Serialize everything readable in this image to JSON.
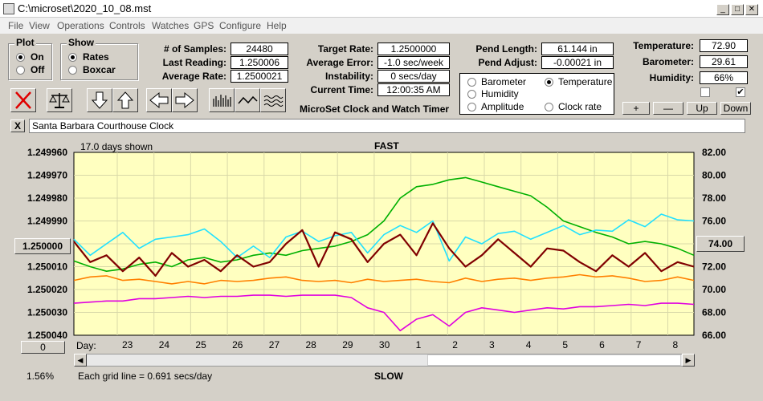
{
  "window": {
    "title": "C:\\microset\\2020_10_08.mst"
  },
  "menu": [
    "File",
    "View",
    "Operations",
    "Controls",
    "Watches",
    "GPS",
    "Configure",
    "Help"
  ],
  "plot_group": {
    "title": "Plot",
    "on": "On",
    "off": "Off",
    "selected": "On"
  },
  "show_group": {
    "title": "Show",
    "rates": "Rates",
    "boxcar": "Boxcar",
    "selected": "Rates"
  },
  "stats": {
    "samples_label": "# of Samples:",
    "samples": "24480",
    "last_label": "Last Reading:",
    "last": "1.250006",
    "avg_label": "Average Rate:",
    "avg": "1.2500021"
  },
  "target": {
    "target_label": "Target Rate:",
    "target": "1.2500000",
    "error_label": "Average Error:",
    "error": "-1.0 sec/week",
    "instab_label": "Instability:",
    "instab": "0 secs/day",
    "time_label": "Current Time:",
    "time": "12:00:35 AM"
  },
  "app_name": "MicroSet Clock and Watch Timer",
  "pend": {
    "length_label": "Pend Length:",
    "length": "61.144 in",
    "adjust_label": "Pend Adjust:",
    "adjust": "-0.00021 in"
  },
  "overlays": {
    "barometer": "Barometer",
    "temperature": "Temperature",
    "humidity": "Humidity",
    "amplitude": "Amplitude",
    "clock_rate": "Clock rate",
    "selected": "Temperature"
  },
  "env": {
    "temp_label": "Temperature:",
    "temp": "72.90",
    "baro_label": "Barometer:",
    "baro": "29.61",
    "hum_label": "Humidity:",
    "hum": "66%"
  },
  "scale_buttons": {
    "plus": "+",
    "minus": "—",
    "up": "Up",
    "down": "Down"
  },
  "clock_name": "Santa Barbara Courthouse Clock",
  "close_x": "X",
  "colors": {
    "plot_bg": "#ffffc0",
    "temperature": "#00b000",
    "barometer": "#ff8000",
    "humidity": "#e000e0",
    "amplitude": "#20e0ff",
    "clock_rate": "#800000"
  },
  "chart_data": {
    "type": "line",
    "days_shown": "17.0 days shown",
    "top_label": "FAST",
    "bottom_label": "SLOW",
    "grid_note": "Each grid line = 0.691 secs/day",
    "left_axis": [
      "1.249960",
      "1.249970",
      "1.249980",
      "1.249990",
      "1.250000",
      "1.250010",
      "1.250020",
      "1.250030",
      "1.250040"
    ],
    "right_axis": [
      "82.00",
      "80.00",
      "78.00",
      "76.00",
      "74.00",
      "72.00",
      "70.00",
      "68.00",
      "66.00"
    ],
    "left_center_button": "1.250000",
    "right_center_button": "74.00",
    "bottom_left_button": "0",
    "percent": "1.56%",
    "x_title": "Day:",
    "x_labels": [
      "23",
      "24",
      "25",
      "26",
      "27",
      "28",
      "29",
      "30",
      "1",
      "2",
      "3",
      "4",
      "5",
      "6",
      "7",
      "8"
    ],
    "ylim_left": [
      1.24996,
      1.25004
    ],
    "ylim_right": [
      66,
      82
    ],
    "series": [
      {
        "key": "temperature",
        "axis": "right",
        "values": [
          72.5,
          72.0,
          71.6,
          71.8,
          72.2,
          72.4,
          72.0,
          72.6,
          72.8,
          72.4,
          72.6,
          73.0,
          73.2,
          73.0,
          73.4,
          73.6,
          73.8,
          74.2,
          74.8,
          76.0,
          78.0,
          79.0,
          79.2,
          79.6,
          79.8,
          79.4,
          79.0,
          78.6,
          78.2,
          77.2,
          76.0,
          75.5,
          75.0,
          74.6,
          74.0,
          74.2,
          74.0,
          73.6,
          73.0
        ]
      },
      {
        "key": "barometer",
        "axis": "right",
        "values": [
          70.8,
          71.1,
          71.2,
          70.8,
          70.9,
          70.7,
          70.5,
          70.7,
          70.5,
          70.8,
          70.7,
          70.8,
          71.0,
          71.1,
          70.8,
          70.7,
          70.8,
          70.6,
          70.9,
          70.7,
          70.8,
          70.9,
          70.7,
          70.6,
          71.0,
          70.7,
          70.9,
          71.0,
          70.8,
          71.0,
          71.1,
          71.3,
          71.1,
          71.2,
          71.0,
          70.7,
          70.8,
          71.1,
          70.8
        ]
      },
      {
        "key": "humidity",
        "axis": "right",
        "values": [
          68.8,
          68.9,
          69.0,
          69.0,
          69.2,
          69.2,
          69.3,
          69.4,
          69.3,
          69.4,
          69.4,
          69.5,
          69.5,
          69.4,
          69.5,
          69.5,
          69.5,
          69.3,
          68.4,
          68.0,
          66.4,
          67.4,
          67.8,
          66.8,
          68.0,
          68.4,
          68.2,
          68.0,
          68.2,
          68.4,
          68.3,
          68.5,
          68.5,
          68.6,
          68.7,
          68.6,
          68.8,
          68.8,
          68.7
        ]
      },
      {
        "key": "amplitude",
        "axis": "right",
        "values": [
          74.4,
          73.0,
          74.0,
          75.0,
          73.6,
          74.4,
          74.6,
          74.8,
          75.3,
          74.2,
          72.8,
          73.8,
          72.8,
          74.6,
          75.1,
          74.2,
          74.7,
          75.0,
          73.2,
          74.8,
          75.6,
          75.0,
          76.0,
          72.5,
          74.6,
          74.0,
          74.9,
          75.1,
          74.4,
          75.0,
          75.6,
          74.8,
          75.2,
          75.1,
          76.1,
          75.5,
          76.6,
          76.1,
          76.0
        ]
      },
      {
        "key": "clock_rate",
        "axis": "left",
        "values": [
          1.249999,
          1.250008,
          1.250005,
          1.250012,
          1.250006,
          1.250014,
          1.250004,
          1.25001,
          1.250007,
          1.250012,
          1.250005,
          1.25001,
          1.250008,
          1.25,
          1.249994,
          1.25001,
          1.249995,
          1.249998,
          1.250008,
          1.25,
          1.249996,
          1.250005,
          1.249991,
          1.250002,
          1.25001,
          1.250005,
          1.249998,
          1.250004,
          1.25001,
          1.250002,
          1.250003,
          1.250008,
          1.250012,
          1.250005,
          1.25001,
          1.250004,
          1.250012,
          1.250008,
          1.25001
        ]
      }
    ]
  }
}
